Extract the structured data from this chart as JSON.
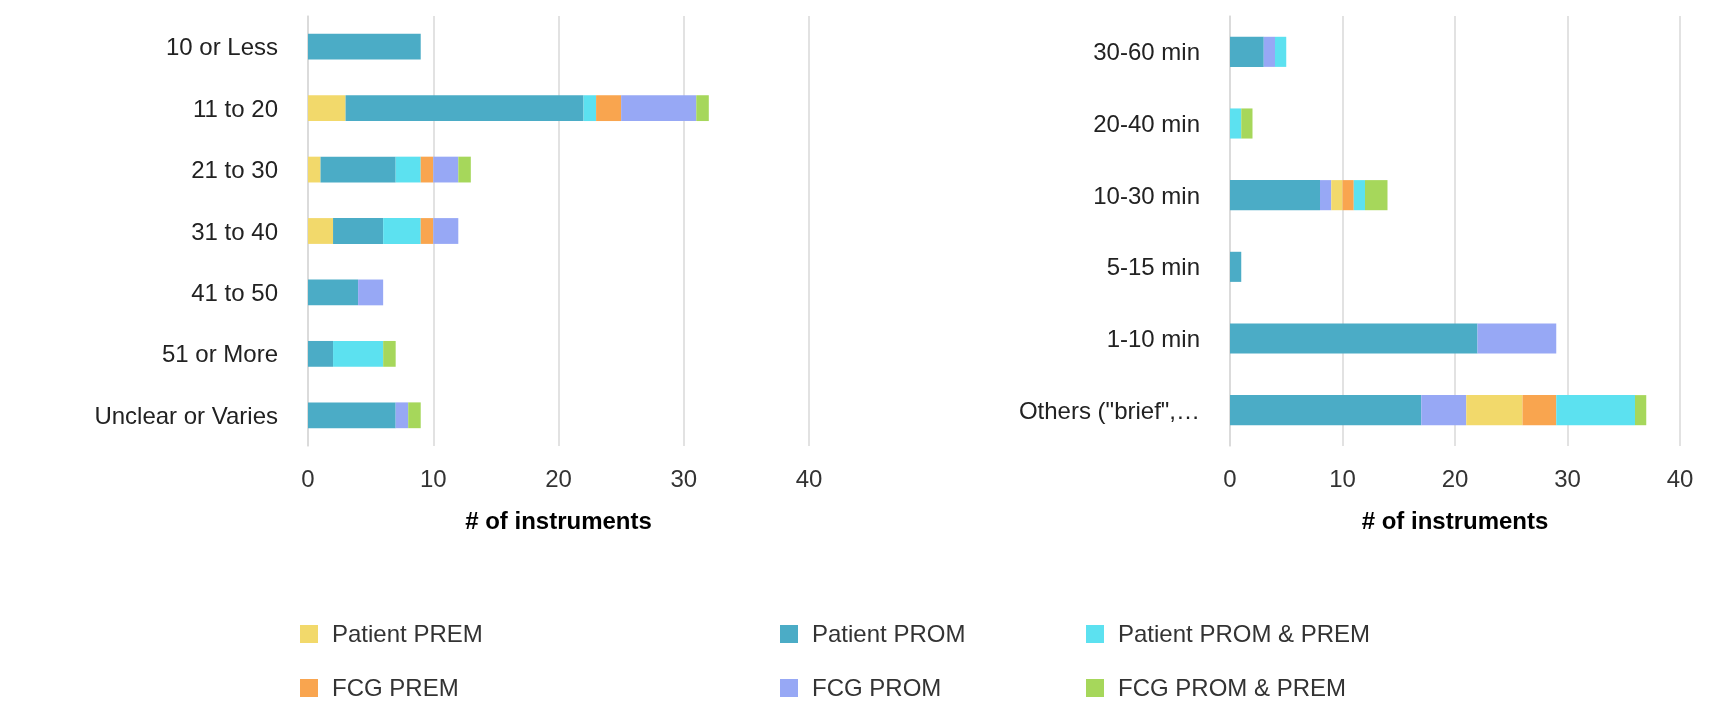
{
  "chart_data": [
    {
      "type": "bar",
      "orientation": "horizontal",
      "stacked": true,
      "xlabel": "# of instruments",
      "xlim": [
        0,
        40
      ],
      "xticks": [
        0,
        10,
        20,
        30,
        40
      ],
      "grid": "x",
      "legend": "bottom",
      "categories": [
        "10 or Less",
        "11 to 20",
        "21 to 30",
        "31 to 40",
        "41 to 50",
        "51 or More",
        "Unclear or Varies"
      ],
      "series": [
        {
          "name": "Patient PREM",
          "color": "#f2d96b",
          "values": [
            null,
            3,
            1,
            2,
            null,
            null,
            null
          ]
        },
        {
          "name": "Patient PROM",
          "color": "#4bacc6",
          "values": [
            9,
            19,
            6,
            4,
            4,
            2,
            7
          ]
        },
        {
          "name": "Patient PROM & PREM",
          "color": "#5ce1f0",
          "values": [
            null,
            1,
            2,
            3,
            null,
            4,
            null
          ]
        },
        {
          "name": "FCG PREM",
          "color": "#f9a54f",
          "values": [
            null,
            2,
            1,
            1,
            null,
            null,
            null
          ]
        },
        {
          "name": "FCG PROM",
          "color": "#97a8f5",
          "values": [
            null,
            6,
            2,
            2,
            2,
            null,
            1
          ]
        },
        {
          "name": "FCG PROM & PREM",
          "color": "#a6d75b",
          "values": [
            null,
            1,
            1,
            null,
            null,
            1,
            1
          ]
        }
      ]
    },
    {
      "type": "bar",
      "orientation": "horizontal",
      "stacked": true,
      "xlabel": "# of instruments",
      "xlim": [
        0,
        40
      ],
      "xticks": [
        0,
        10,
        20,
        30,
        40
      ],
      "grid": "x",
      "legend": "bottom",
      "categories": [
        "30-60 min",
        "20-40 min",
        "10-30 min",
        "5-15 min",
        "1-10 min",
        "Others (\"brief\",…"
      ],
      "series": [
        {
          "name": "Patient PROM",
          "color": "#4bacc6",
          "values": [
            3,
            null,
            8,
            1,
            22,
            17
          ]
        },
        {
          "name": "FCG PROM",
          "color": "#97a8f5",
          "values": [
            1,
            null,
            1,
            null,
            7,
            4
          ]
        },
        {
          "name": "Patient PREM",
          "color": "#f2d96b",
          "values": [
            null,
            null,
            1,
            null,
            null,
            5
          ]
        },
        {
          "name": "FCG PREM",
          "color": "#f9a54f",
          "values": [
            null,
            null,
            1,
            null,
            null,
            3
          ]
        },
        {
          "name": "Patient PROM & PREM",
          "color": "#5ce1f0",
          "values": [
            1,
            1,
            1,
            null,
            null,
            7
          ]
        },
        {
          "name": "FCG PROM & PREM",
          "color": "#a6d75b",
          "values": [
            null,
            1,
            2,
            null,
            null,
            1
          ]
        }
      ]
    }
  ]
}
